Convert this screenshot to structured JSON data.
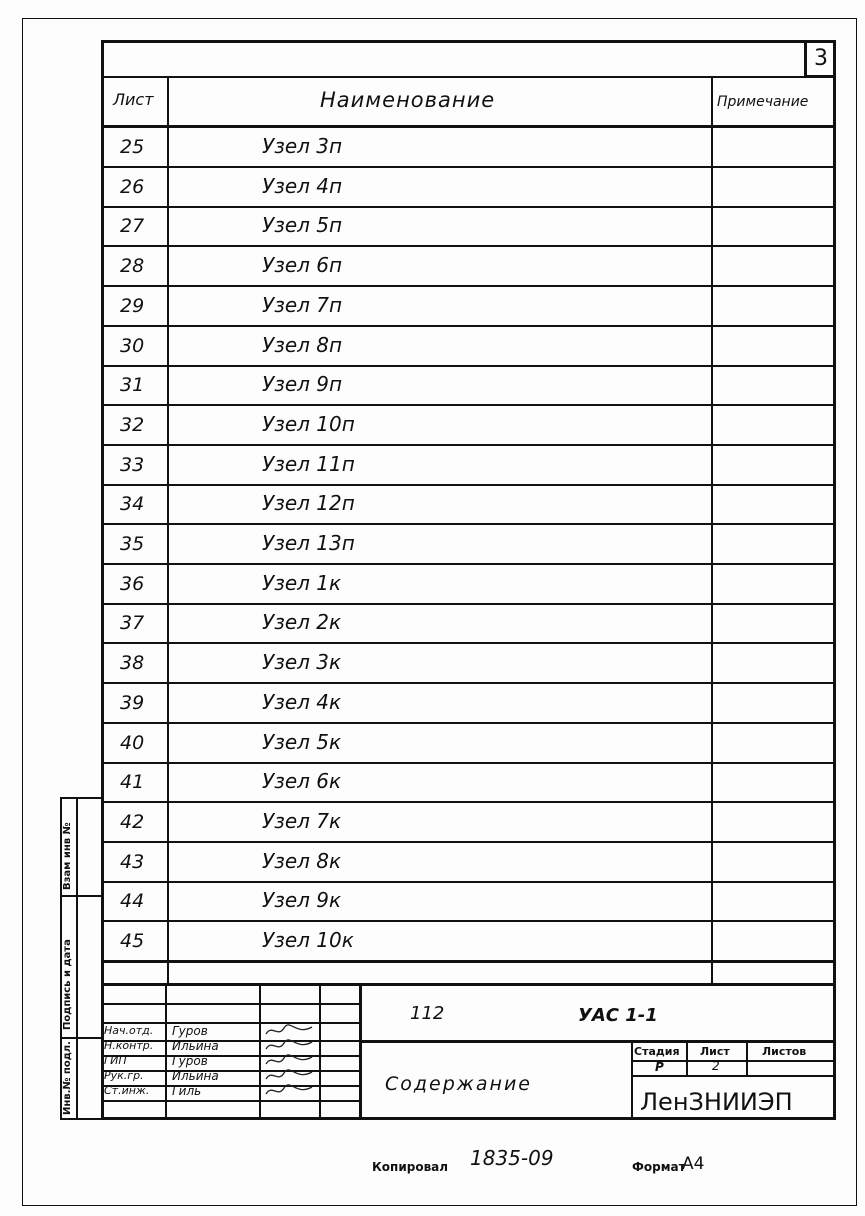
{
  "sheet_corner_number": "3",
  "header": {
    "sheet": "Лист",
    "name": "Наименование",
    "note": "Примечание"
  },
  "rows": [
    {
      "sheet": "25",
      "name": "Узел 3п"
    },
    {
      "sheet": "26",
      "name": "Узел 4п"
    },
    {
      "sheet": "27",
      "name": "Узел 5п"
    },
    {
      "sheet": "28",
      "name": "Узел 6п"
    },
    {
      "sheet": "29",
      "name": "Узел 7п"
    },
    {
      "sheet": "30",
      "name": "Узел 8п"
    },
    {
      "sheet": "31",
      "name": "Узел 9п"
    },
    {
      "sheet": "32",
      "name": "Узел 10п"
    },
    {
      "sheet": "33",
      "name": "Узел 11п"
    },
    {
      "sheet": "34",
      "name": "Узел 12п"
    },
    {
      "sheet": "35",
      "name": "Узел 13п"
    },
    {
      "sheet": "36",
      "name": "Узел 1к"
    },
    {
      "sheet": "37",
      "name": "Узел 2к"
    },
    {
      "sheet": "38",
      "name": "Узел 3к"
    },
    {
      "sheet": "39",
      "name": "Узел 4к"
    },
    {
      "sheet": "40",
      "name": "Узел 5к"
    },
    {
      "sheet": "41",
      "name": "Узел 6к"
    },
    {
      "sheet": "42",
      "name": "Узел 7к"
    },
    {
      "sheet": "43",
      "name": "Узел 8к"
    },
    {
      "sheet": "44",
      "name": "Узел 9к"
    },
    {
      "sheet": "45",
      "name": "Узел 10к"
    }
  ],
  "side_labels": {
    "replace": "Взам инв №",
    "sign_date": "Подпись и дата",
    "inv": "Инв.№ подл."
  },
  "title_block": {
    "code1": "112",
    "code2": "УАС 1-1",
    "title": "Содержание",
    "people": [
      {
        "role": "Нач.отд.",
        "name": "Гуров"
      },
      {
        "role": "Н.контр.",
        "name": "Ильина"
      },
      {
        "role": "ГИП",
        "name": "Гуров"
      },
      {
        "role": "Рук.гр.",
        "name": "Ильина"
      },
      {
        "role": "Ст.инж.",
        "name": "Гиль"
      }
    ],
    "stage_label": "Стадия",
    "sheet_label": "Лист",
    "sheets_label": "Листов",
    "stage": "Р",
    "sheet": "2",
    "sheets": "",
    "org": "ЛенЗНИИЭП"
  },
  "footer": {
    "copied_label": "Копировал",
    "copied_number": "1835-09",
    "format_label": "Формат",
    "format": "А4"
  }
}
